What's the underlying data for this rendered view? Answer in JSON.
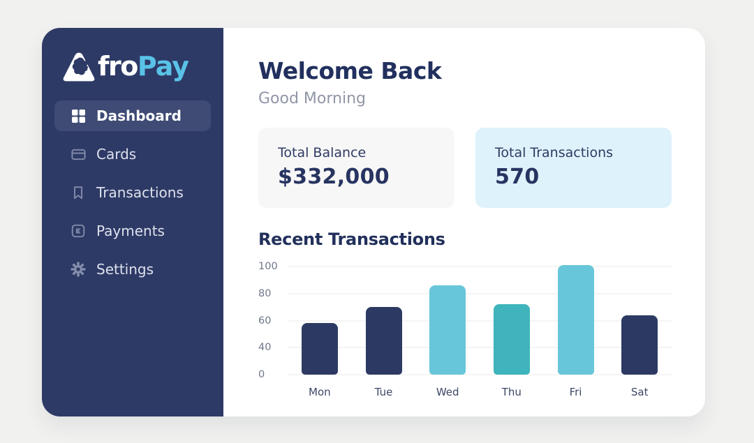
{
  "brand": {
    "fro": "fro",
    "pay": "Pay",
    "accent_color": "#5ac2e7"
  },
  "sidebar": {
    "bg_color": "#2e3a66",
    "active_bg_color": "#3f4b74",
    "items": [
      {
        "label": "Dashboard",
        "icon": "dashboard-grid-icon",
        "active": true
      },
      {
        "label": "Cards",
        "icon": "credit-card-icon",
        "active": false
      },
      {
        "label": "Transactions",
        "icon": "bookmark-icon",
        "active": false
      },
      {
        "label": "Payments",
        "icon": "payment-receipt-icon",
        "active": false
      },
      {
        "label": "Settings",
        "icon": "gear-icon",
        "active": false
      }
    ]
  },
  "header": {
    "title": "Welcome Back",
    "subtitle": "Good Morning"
  },
  "stats": [
    {
      "label": "Total Balance",
      "value": "$332,000",
      "bg": "#f7f7f7"
    },
    {
      "label": "Total Transactions",
      "value": "570",
      "bg": "#def2fb"
    }
  ],
  "chart_data": {
    "type": "bar",
    "title": "Recent Transactions",
    "categories": [
      "Mon",
      "Tue",
      "Wed",
      "Thu",
      "Fri",
      "Sat"
    ],
    "values": [
      58,
      70,
      86,
      72,
      101,
      64
    ],
    "bar_colors": [
      "#2c3a63",
      "#2c3a63",
      "#68c6da",
      "#3fb4bc",
      "#68c6da",
      "#2c3a63"
    ],
    "xlabel": "",
    "ylabel": "",
    "y_ticks": [
      0,
      40,
      60,
      80,
      100
    ],
    "y_axis_note": "ticks are rendered equally spaced exactly as in source (20 omitted, non-linear axis)",
    "grid": true,
    "legend": false
  }
}
